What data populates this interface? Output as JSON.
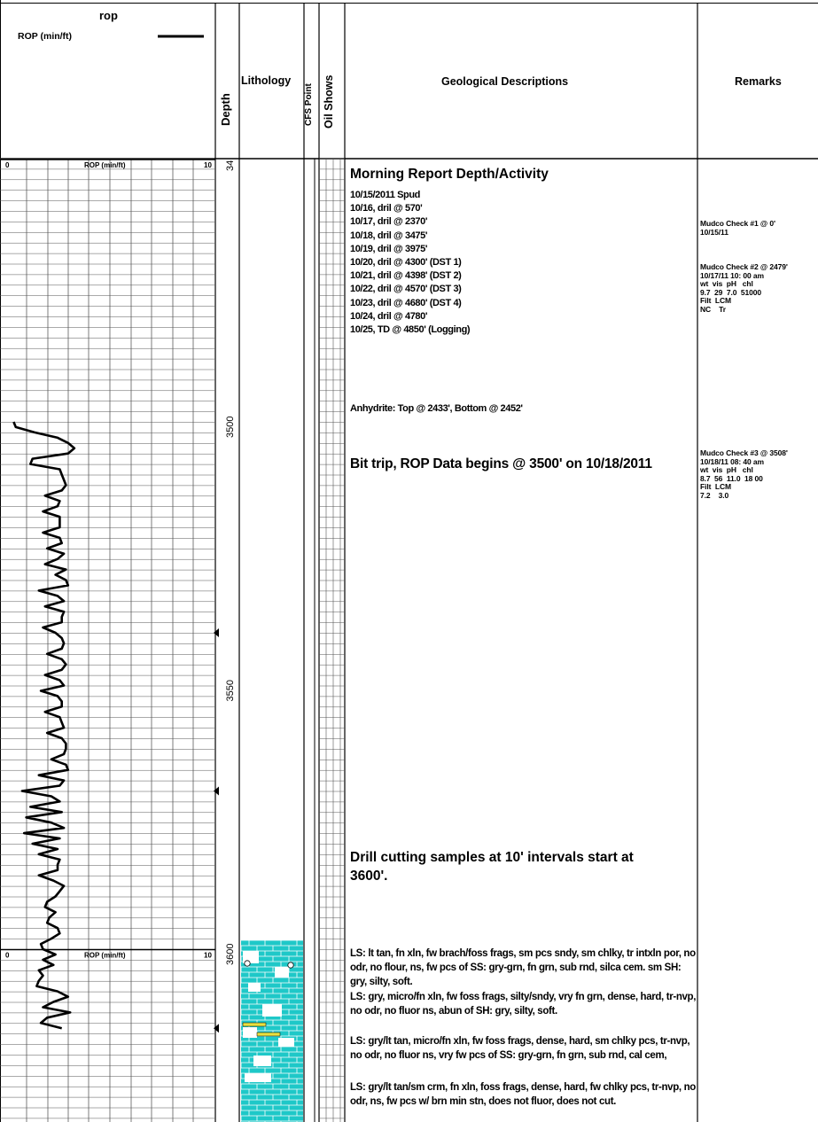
{
  "header": {
    "rop_title": "rop",
    "rop_legend_label": "ROP (min/ft)",
    "depth": "Depth",
    "lithology": "Lithology",
    "cfs_point": "CFS Point",
    "oil_shows": "Oil Shows",
    "geo_desc": "Geological Descriptions",
    "remarks": "Remarks"
  },
  "colors": {
    "limestone": "#1ec8c8",
    "curve": "#000000",
    "grid": "#000000"
  },
  "track": {
    "scale_min": "0",
    "scale_max": "10",
    "scale_label": "ROP (min/ft)"
  },
  "depth_labels": [
    "34",
    "3500",
    "3550",
    "3600"
  ],
  "report": {
    "title": "Morning Report Depth/Activity",
    "lines": [
      "10/15/2011 Spud",
      "10/16, dril @ 570'",
      "10/17, dril @ 2370'",
      "10/18, dril @ 3475'",
      "10/19, dril @ 3975'",
      "10/20, dril @ 4300' (DST 1)",
      "10/21, dril @ 4398' (DST 2)",
      "10/22, dril @ 4570' (DST 3)",
      "10/23, dril @ 4680' (DST 4)",
      "10/24, dril @ 4780'",
      "10/25, TD @ 4850' (Logging)"
    ],
    "anhydrite": "Anhydrite: Top @ 2433', Bottom @ 2452'",
    "bit_trip": "Bit trip, ROP Data begins @ 3500' on 10/18/2011",
    "samples": "Drill cutting samples at 10' intervals start at 3600'."
  },
  "descriptions": [
    "LS: lt tan, fn xln, fw brach/foss frags, sm pcs sndy, sm chlky, tr intxln por, no odr, no flour, ns, fw pcs of SS: gry-grn, fn grn, sub rnd, silca cem. sm SH: gry, silty, soft.",
    "LS: gry, micro/fn xln, fw foss frags, silty/sndy, vry fn grn, dense, hard, tr-nvp, no odr, no fluor ns, abun of SH: gry, silty, soft.",
    "LS: gry/lt tan, micro/fn xln, fw foss frags, dense, hard, sm chlky pcs, tr-nvp, no odr, no fluor ns, vry fw pcs of SS: gry-grn, fn grn, sub rnd, cal cem,",
    "LS: gry/lt tan/sm crm, fn xln, foss frags, dense, hard, fw chlky pcs, tr-nvp, no odr, ns, fw pcs w/ brn min stn, does not fluor, does not cut."
  ],
  "remarks": [
    "Mudco Check #1 @ 0'\n10/15/11",
    "Mudco Check #2 @ 2479'\n10/17/11 10: 00 am\nwt  vis  pH   chl\n9.7  29  7.0  51000\nFilt  LCM\nNC    Tr",
    "Mudco Check #3 @ 3508'\n10/18/11 08: 40 am\nwt  vis  pH   chl\n8.7  56  11.0  18 00\nFilt  LCM\n7.2    3.0"
  ],
  "chart_data": {
    "type": "line",
    "title": "rop",
    "xlabel": "ROP (min/ft)",
    "ylabel": "Depth",
    "xlim": [
      0,
      10
    ],
    "ylim": [
      3466,
      3616
    ],
    "series": [
      {
        "name": "ROP (min/ft)",
        "depth": [
          3500,
          3501,
          3502,
          3503,
          3504,
          3505,
          3506,
          3507,
          3508,
          3509,
          3510,
          3511,
          3512,
          3513,
          3514,
          3515,
          3516,
          3517,
          3518,
          3519,
          3520,
          3521,
          3522,
          3523,
          3524,
          3525,
          3526,
          3527,
          3528,
          3529,
          3530,
          3531,
          3532,
          3533,
          3534,
          3535,
          3536,
          3537,
          3538,
          3539,
          3540,
          3541,
          3542,
          3543,
          3544,
          3545,
          3546,
          3547,
          3548,
          3549,
          3550,
          3551,
          3552,
          3553,
          3554,
          3555,
          3556,
          3557,
          3558,
          3559,
          3560,
          3561,
          3562,
          3563,
          3564,
          3565,
          3566,
          3567,
          3568,
          3569,
          3570,
          3571,
          3572,
          3573,
          3574,
          3575,
          3576,
          3577,
          3578,
          3579,
          3580,
          3581,
          3582,
          3583,
          3584,
          3585,
          3586,
          3587,
          3588,
          3589,
          3590,
          3591,
          3592,
          3593,
          3594,
          3595,
          3596,
          3597,
          3598,
          3599,
          3600,
          3601,
          3602,
          3603,
          3604,
          3605,
          3606,
          3607,
          3608,
          3609,
          3610,
          3611,
          3612,
          3613,
          3614,
          3615
        ],
        "values": [
          0.4,
          0.5,
          1.4,
          2.5,
          3.0,
          3.3,
          3.0,
          1.3,
          1.2,
          2.6,
          2.7,
          2.8,
          2.9,
          2.7,
          1.9,
          2.6,
          2.5,
          1.8,
          2.6,
          2.6,
          2.6,
          1.8,
          2.6,
          2.7,
          2.0,
          2.8,
          2.5,
          1.9,
          2.9,
          2.4,
          2.9,
          3.0,
          1.6,
          2.5,
          2.8,
          1.9,
          2.8,
          2.7,
          2.7,
          1.8,
          2.4,
          2.7,
          2.8,
          2.7,
          2.0,
          2.7,
          2.9,
          2.7,
          1.9,
          2.6,
          2.8,
          1.7,
          2.5,
          2.7,
          2.7,
          1.9,
          2.6,
          2.7,
          2.8,
          2.0,
          2.7,
          2.9,
          2.9,
          2.8,
          2.2,
          2.9,
          3.0,
          1.6,
          2.8,
          2.6,
          0.8,
          2.2,
          2.6,
          1.2,
          2.7,
          1.0,
          2.2,
          2.8,
          0.9,
          2.6,
          1.3,
          2.5,
          1.6,
          2.6,
          2.5,
          2.5,
          1.6,
          2.3,
          2.8,
          2.6,
          2.4,
          2.0,
          1.9,
          2.4,
          2.1,
          2.0,
          2.5,
          2.6,
          2.2,
          1.7,
          1.8,
          2.4,
          1.8,
          2.3,
          1.6,
          1.8,
          1.6,
          1.5,
          2.5,
          3.0,
          2.3,
          1.8,
          3.1,
          2.0,
          1.7,
          2.7
        ]
      }
    ],
    "depth_ticks": [
      "3500",
      "3550",
      "3600"
    ],
    "grid": true,
    "legend": "top-left",
    "markers_depth": [
      3540,
      3570,
      3615
    ]
  }
}
